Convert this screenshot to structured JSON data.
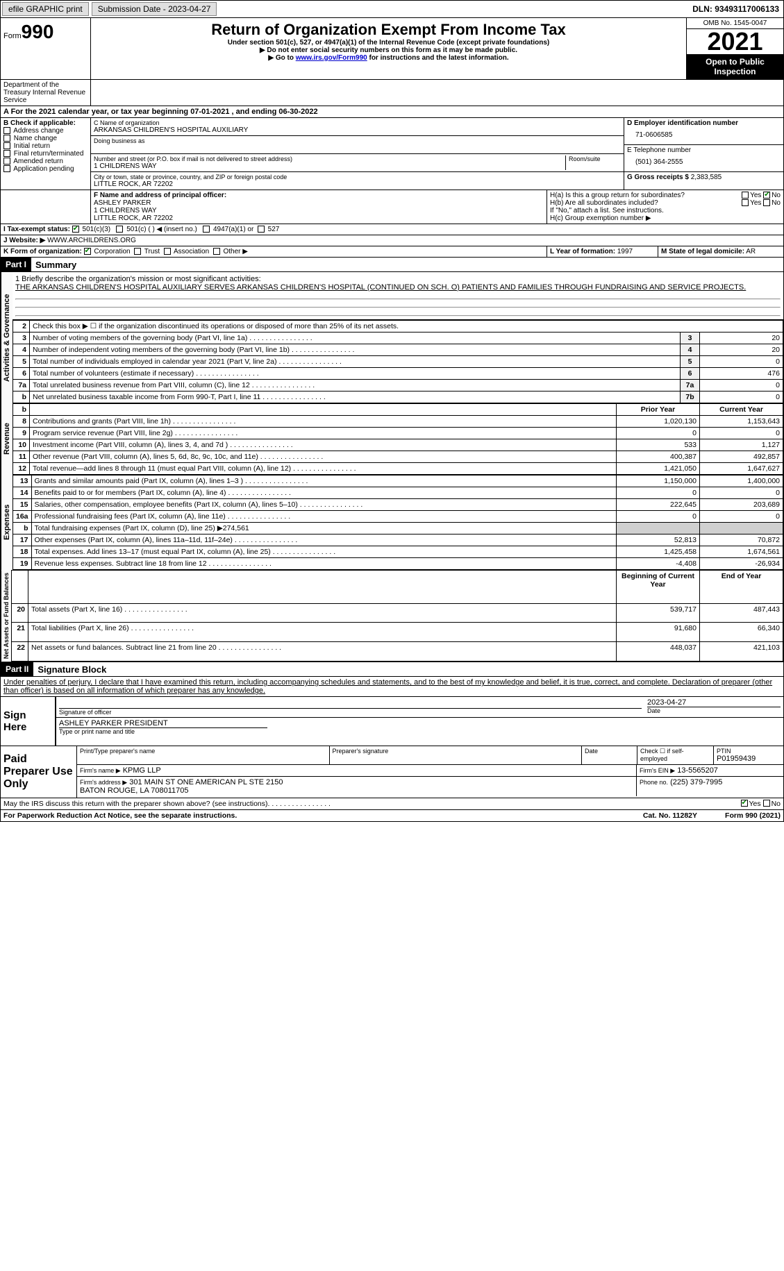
{
  "topbar": {
    "efile": "efile GRAPHIC print",
    "submission_label": "Submission Date - 2023-04-27",
    "dln_label": "DLN: 93493117006133"
  },
  "header": {
    "form_word": "Form",
    "form_no": "990",
    "title": "Return of Organization Exempt From Income Tax",
    "sub1": "Under section 501(c), 527, or 4947(a)(1) of the Internal Revenue Code (except private foundations)",
    "sub2": "▶ Do not enter social security numbers on this form as it may be made public.",
    "sub3_pre": "▶ Go to ",
    "sub3_link": "www.irs.gov/Form990",
    "sub3_post": " for instructions and the latest information.",
    "omb": "OMB No. 1545-0047",
    "year": "2021",
    "inspect": "Open to Public Inspection",
    "dept": "Department of the Treasury Internal Revenue Service"
  },
  "period": {
    "text": "A For the 2021 calendar year, or tax year beginning 07-01-2021    , and ending 06-30-2022"
  },
  "colB": {
    "label": "B Check if applicable:",
    "items": [
      "Address change",
      "Name change",
      "Initial return",
      "Final return/terminated",
      "Amended return",
      "Application pending"
    ]
  },
  "colC": {
    "name_lbl": "C Name of organization",
    "name": "ARKANSAS CHILDREN'S HOSPITAL AUXILIARY",
    "dba_lbl": "Doing business as",
    "addr_lbl": "Number and street (or P.O. box if mail is not delivered to street address)",
    "room_lbl": "Room/suite",
    "addr": "1 CHILDRENS WAY",
    "city_lbl": "City or town, state or province, country, and ZIP or foreign postal code",
    "city": "LITTLE ROCK, AR  72202"
  },
  "colD": {
    "ein_lbl": "D Employer identification number",
    "ein": "71-0606585",
    "tel_lbl": "E Telephone number",
    "tel": "(501) 364-2555",
    "gross_lbl": "G Gross receipts $",
    "gross": "2,383,585"
  },
  "officer": {
    "lbl": "F  Name and address of principal officer:",
    "name": "ASHLEY PARKER",
    "addr1": "1 CHILDRENS WAY",
    "addr2": "LITTLE ROCK, AR  72202"
  },
  "h": {
    "a": "H(a)  Is this a group return for subordinates?",
    "b": "H(b)  Are all subordinates included?",
    "b_note": "If \"No,\" attach a list. See instructions.",
    "c": "H(c)  Group exemption number ▶",
    "yes": "Yes",
    "no": "No"
  },
  "status": {
    "lbl": "I   Tax-exempt status:",
    "o1": "501(c)(3)",
    "o2": "501(c) (  ) ◀ (insert no.)",
    "o3": "4947(a)(1) or",
    "o4": "527"
  },
  "website": {
    "lbl": "J   Website: ▶",
    "val": "WWW.ARCHILDRENS.ORG"
  },
  "orgform": {
    "lbl": "K Form of organization:",
    "o1": "Corporation",
    "o2": "Trust",
    "o3": "Association",
    "o4": "Other ▶",
    "l_lbl": "L Year of formation:",
    "l_val": "1997",
    "m_lbl": "M State of legal domicile:",
    "m_val": "AR"
  },
  "part1": {
    "hdr": "Part I",
    "title": "Summary"
  },
  "mission": {
    "lbl": "1    Briefly describe the organization's mission or most significant activities:",
    "text": "THE ARKANSAS CHILDREN'S HOSPITAL AUXILIARY SERVES ARKANSAS CHILDREN'S HOSPITAL (CONTINUED ON SCH. O) PATIENTS AND FAMILIES THROUGH FUNDRAISING AND SERVICE PROJECTS."
  },
  "gov_lines": [
    {
      "n": "2",
      "d": "Check this box ▶ ☐  if the organization discontinued its operations or disposed of more than 25% of its net assets.",
      "box": "",
      "v": ""
    },
    {
      "n": "3",
      "d": "Number of voting members of the governing body (Part VI, line 1a)",
      "box": "3",
      "v": "20"
    },
    {
      "n": "4",
      "d": "Number of independent voting members of the governing body (Part VI, line 1b)",
      "box": "4",
      "v": "20"
    },
    {
      "n": "5",
      "d": "Total number of individuals employed in calendar year 2021 (Part V, line 2a)",
      "box": "5",
      "v": "0"
    },
    {
      "n": "6",
      "d": "Total number of volunteers (estimate if necessary)",
      "box": "6",
      "v": "476"
    },
    {
      "n": "7a",
      "d": "Total unrelated business revenue from Part VIII, column (C), line 12",
      "box": "7a",
      "v": "0"
    },
    {
      "n": "b",
      "d": "Net unrelated business taxable income from Form 990-T, Part I, line 11",
      "box": "7b",
      "v": "0"
    }
  ],
  "rev_hdr": {
    "prior": "Prior Year",
    "curr": "Current Year"
  },
  "rev_lines": [
    {
      "n": "8",
      "d": "Contributions and grants (Part VIII, line 1h)",
      "p": "1,020,130",
      "c": "1,153,643"
    },
    {
      "n": "9",
      "d": "Program service revenue (Part VIII, line 2g)",
      "p": "0",
      "c": "0"
    },
    {
      "n": "10",
      "d": "Investment income (Part VIII, column (A), lines 3, 4, and 7d )",
      "p": "533",
      "c": "1,127"
    },
    {
      "n": "11",
      "d": "Other revenue (Part VIII, column (A), lines 5, 6d, 8c, 9c, 10c, and 11e)",
      "p": "400,387",
      "c": "492,857"
    },
    {
      "n": "12",
      "d": "Total revenue—add lines 8 through 11 (must equal Part VIII, column (A), line 12)",
      "p": "1,421,050",
      "c": "1,647,627"
    }
  ],
  "exp_lines": [
    {
      "n": "13",
      "d": "Grants and similar amounts paid (Part IX, column (A), lines 1–3 )",
      "p": "1,150,000",
      "c": "1,400,000"
    },
    {
      "n": "14",
      "d": "Benefits paid to or for members (Part IX, column (A), line 4)",
      "p": "0",
      "c": "0"
    },
    {
      "n": "15",
      "d": "Salaries, other compensation, employee benefits (Part IX, column (A), lines 5–10)",
      "p": "222,645",
      "c": "203,689"
    },
    {
      "n": "16a",
      "d": "Professional fundraising fees (Part IX, column (A), line 11e)",
      "p": "0",
      "c": "0"
    },
    {
      "n": "b",
      "d": "Total fundraising expenses (Part IX, column (D), line 25) ▶274,561",
      "p": "",
      "c": "",
      "shade": true
    },
    {
      "n": "17",
      "d": "Other expenses (Part IX, column (A), lines 11a–11d, 11f–24e)",
      "p": "52,813",
      "c": "70,872"
    },
    {
      "n": "18",
      "d": "Total expenses. Add lines 13–17 (must equal Part IX, column (A), line 25)",
      "p": "1,425,458",
      "c": "1,674,561"
    },
    {
      "n": "19",
      "d": "Revenue less expenses. Subtract line 18 from line 12",
      "p": "-4,408",
      "c": "-26,934"
    }
  ],
  "net_hdr": {
    "b": "Beginning of Current Year",
    "e": "End of Year"
  },
  "net_lines": [
    {
      "n": "20",
      "d": "Total assets (Part X, line 16)",
      "p": "539,717",
      "c": "487,443"
    },
    {
      "n": "21",
      "d": "Total liabilities (Part X, line 26)",
      "p": "91,680",
      "c": "66,340"
    },
    {
      "n": "22",
      "d": "Net assets or fund balances. Subtract line 21 from line 20",
      "p": "448,037",
      "c": "421,103"
    }
  ],
  "vert": {
    "gov": "Activities & Governance",
    "rev": "Revenue",
    "exp": "Expenses",
    "net": "Net Assets or Fund Balances"
  },
  "part2": {
    "hdr": "Part II",
    "title": "Signature Block"
  },
  "sig": {
    "decl": "Under penalties of perjury, I declare that I have examined this return, including accompanying schedules and statements, and to the best of my knowledge and belief, it is true, correct, and complete. Declaration of preparer (other than officer) is based on all information of which preparer has any knowledge.",
    "sign_here": "Sign Here",
    "sig_lbl": "Signature of officer",
    "date_lbl": "Date",
    "date": "2023-04-27",
    "name": "ASHLEY PARKER  PRESIDENT",
    "name_lbl": "Type or print name and title"
  },
  "prep": {
    "hdr": "Paid Preparer Use Only",
    "pname_lbl": "Print/Type preparer's name",
    "psig_lbl": "Preparer's signature",
    "pdate_lbl": "Date",
    "chk_lbl": "Check ☐ if self-employed",
    "ptin_lbl": "PTIN",
    "ptin": "P01959439",
    "firm_lbl": "Firm's name    ▶",
    "firm": "KPMG LLP",
    "fein_lbl": "Firm's EIN ▶",
    "fein": "13-5565207",
    "faddr_lbl": "Firm's address ▶",
    "faddr": "301 MAIN ST ONE AMERICAN PL STE 2150\nBATON ROUGE, LA  708011705",
    "phone_lbl": "Phone no.",
    "phone": "(225) 379-7995"
  },
  "discuss": {
    "q": "May the IRS discuss this return with the preparer shown above? (see instructions)",
    "yes": "Yes",
    "no": "No"
  },
  "footer": {
    "pra": "For Paperwork Reduction Act Notice, see the separate instructions.",
    "cat": "Cat. No. 11282Y",
    "form": "Form 990 (2021)"
  }
}
